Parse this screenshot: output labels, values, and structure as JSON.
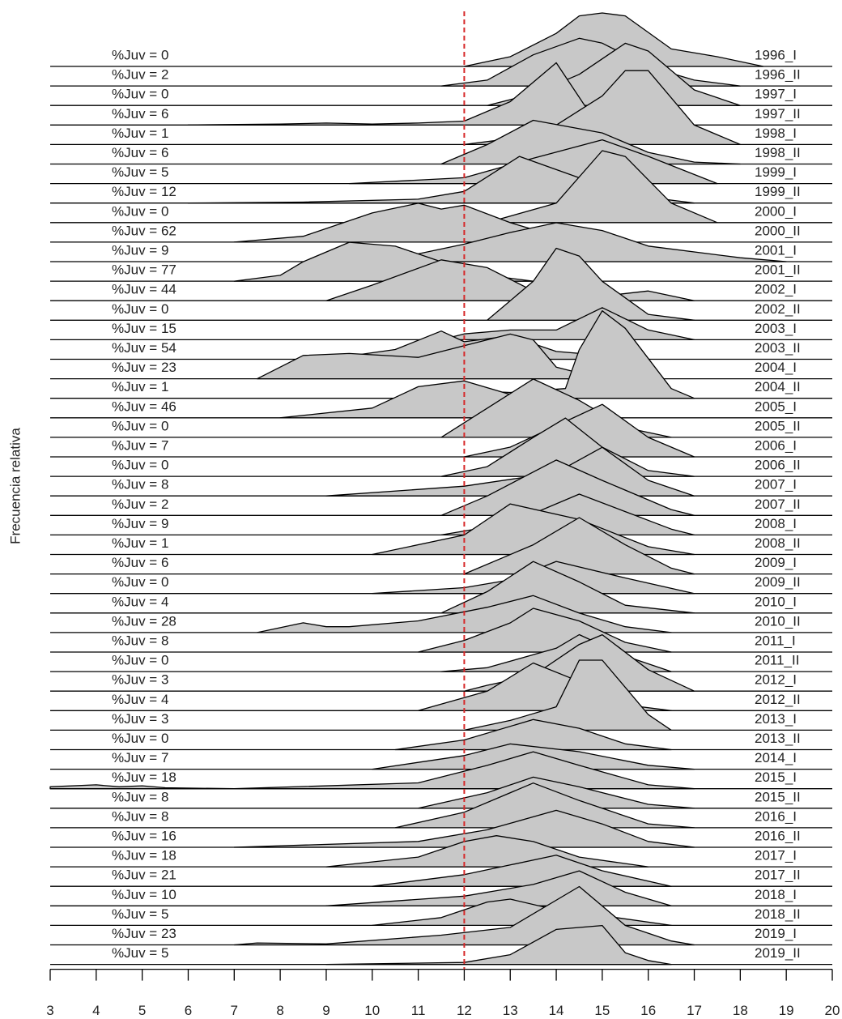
{
  "chart_data": {
    "type": "ridgeline",
    "ylabel": "Frecuencia relativa",
    "xlim": [
      3,
      20
    ],
    "xticks": [
      3,
      4,
      5,
      6,
      7,
      8,
      9,
      10,
      11,
      12,
      13,
      14,
      15,
      16,
      17,
      18,
      19,
      20
    ],
    "vline": 12,
    "vline_color": "#d62728",
    "fill": "#c8c8c8",
    "series": [
      {
        "name": "1996_I",
        "label": "%Juv = 0",
        "x": [
          12,
          13,
          14,
          14.5,
          15,
          15.5,
          16.5,
          17.5,
          18.5
        ],
        "values": [
          0,
          0.5,
          1.7,
          2.6,
          2.75,
          2.6,
          0.9,
          0.5,
          0
        ]
      },
      {
        "name": "1996_II",
        "label": "%Juv = 2",
        "x": [
          11.5,
          12.5,
          13.5,
          14.5,
          15,
          16,
          17,
          18
        ],
        "values": [
          0,
          0.3,
          1.6,
          2.45,
          2.2,
          1,
          0.3,
          0
        ]
      },
      {
        "name": "1997_I",
        "label": "%Juv = 0",
        "x": [
          12.5,
          13.5,
          14.5,
          15.5,
          16,
          17,
          18
        ],
        "values": [
          0,
          0.6,
          1.6,
          3.2,
          2.8,
          0.8,
          0
        ]
      },
      {
        "name": "1997_II",
        "label": "%Juv = 6",
        "x": [
          6,
          8,
          9,
          10,
          11,
          12,
          13,
          14,
          14.9
        ],
        "values": [
          0,
          0.05,
          0.1,
          0.05,
          0.1,
          0.2,
          1.2,
          3.2,
          0
        ]
      },
      {
        "name": "1998_I",
        "label": "%Juv = 1",
        "x": [
          12,
          13,
          14,
          15,
          15.5,
          16,
          17,
          18
        ],
        "values": [
          0,
          0.3,
          1,
          2.5,
          3.8,
          3.8,
          1,
          0
        ]
      },
      {
        "name": "1998_II",
        "label": "%Juv = 6",
        "x": [
          11.5,
          12.5,
          13.5,
          15,
          16,
          17,
          18
        ],
        "values": [
          0,
          1,
          2.25,
          1.6,
          0.6,
          0.1,
          0
        ]
      },
      {
        "name": "1999_I",
        "label": "%Juv = 5",
        "x": [
          9.5,
          12,
          13.5,
          15,
          16,
          17.5
        ],
        "values": [
          0,
          0.3,
          1.3,
          2.25,
          1.4,
          0
        ]
      },
      {
        "name": "1999_II",
        "label": "%Juv = 12",
        "x": [
          6,
          8.5,
          11,
          12,
          13.2,
          14.5,
          16,
          17
        ],
        "values": [
          0,
          0.05,
          0.2,
          0.6,
          2.4,
          1.3,
          0.3,
          0
        ]
      },
      {
        "name": "2000_I",
        "label": "%Juv = 0",
        "x": [
          12.5,
          14,
          15,
          15.5,
          16.5,
          17.5
        ],
        "values": [
          0,
          1,
          3.7,
          3.4,
          1,
          0
        ]
      },
      {
        "name": "2000_II",
        "label": "%Juv = 62",
        "x": [
          7,
          8.5,
          10,
          11,
          11.5,
          12,
          13,
          14,
          15
        ],
        "values": [
          0,
          0.3,
          1.5,
          2,
          1.7,
          1.9,
          1,
          0.3,
          0
        ]
      },
      {
        "name": "2001_I",
        "label": "%Juv = 9",
        "x": [
          9,
          11,
          12,
          13,
          14,
          15,
          16,
          18,
          19
        ],
        "values": [
          0,
          0.4,
          0.9,
          1.5,
          2,
          1.6,
          0.8,
          0.2,
          0
        ]
      },
      {
        "name": "2001_II",
        "label": "%Juv = 77",
        "x": [
          7,
          8,
          8.5,
          9.5,
          10.5,
          11.5,
          12.5,
          13.5
        ],
        "values": [
          0,
          0.3,
          1,
          2,
          1.8,
          1,
          0.3,
          0
        ]
      },
      {
        "name": "2002_I",
        "label": "%Juv = 44",
        "x": [
          9,
          10,
          11.5,
          12.5,
          13.5,
          14.5,
          16,
          17
        ],
        "values": [
          0,
          0.8,
          2.1,
          1.7,
          0.5,
          0.1,
          0.5,
          0
        ]
      },
      {
        "name": "2002_II",
        "label": "%Juv = 0",
        "x": [
          12.5,
          13.5,
          14,
          14.5,
          15,
          16,
          17
        ],
        "values": [
          0,
          2,
          3.7,
          3.3,
          2,
          0.3,
          0
        ]
      },
      {
        "name": "2003_I",
        "label": "%Juv = 15",
        "x": [
          11.5,
          12,
          13,
          14,
          15,
          16,
          17
        ],
        "values": [
          0,
          0.3,
          0.5,
          0.5,
          1.65,
          0.5,
          0
        ]
      },
      {
        "name": "2003_II",
        "label": "%Juv = 54",
        "x": [
          9,
          10.5,
          11.5,
          12,
          13,
          14,
          15,
          16
        ],
        "values": [
          0,
          0.5,
          1.45,
          0.9,
          1.2,
          0.4,
          0.2,
          0
        ]
      },
      {
        "name": "2004_I",
        "label": "%Juv = 23",
        "x": [
          7.5,
          8.5,
          9.5,
          11,
          12,
          13,
          13.5,
          14,
          15
        ],
        "values": [
          0,
          1.2,
          1.3,
          1.1,
          1.7,
          2.3,
          2,
          0.6,
          0
        ]
      },
      {
        "name": "2004_II",
        "label": "%Juv = 1",
        "x": [
          10.5,
          12,
          13,
          14.2,
          14.5,
          15,
          15.5,
          16.5,
          17
        ],
        "values": [
          0,
          0.4,
          0.3,
          0.5,
          2.5,
          4.5,
          3.6,
          0.5,
          0
        ]
      },
      {
        "name": "2005_I",
        "label": "%Juv = 46",
        "x": [
          8,
          10,
          11,
          12,
          13,
          14,
          15
        ],
        "values": [
          0,
          0.5,
          1.6,
          1.9,
          1.2,
          0.4,
          0
        ]
      },
      {
        "name": "2005_II",
        "label": "%Juv = 0",
        "x": [
          11.5,
          12.5,
          13.5,
          14.5,
          15.5,
          16.5
        ],
        "values": [
          0,
          1.5,
          3,
          1.9,
          0.5,
          0
        ]
      },
      {
        "name": "2006_I",
        "label": "%Juv = 7",
        "x": [
          12,
          13,
          14,
          15,
          16,
          17
        ],
        "values": [
          0,
          0.5,
          1.6,
          2.7,
          1,
          0
        ]
      },
      {
        "name": "2006_II",
        "label": "%Juv = 0",
        "x": [
          11.5,
          12.5,
          13.5,
          14.2,
          15,
          16,
          17
        ],
        "values": [
          0,
          0.5,
          2,
          3,
          1.5,
          0.3,
          0
        ]
      },
      {
        "name": "2007_I",
        "label": "%Juv = 8",
        "x": [
          9,
          12,
          14,
          15,
          16,
          17
        ],
        "values": [
          0,
          0.5,
          1.2,
          2.5,
          0.8,
          0
        ]
      },
      {
        "name": "2007_II",
        "label": "%Juv = 2",
        "x": [
          11.5,
          12.5,
          14,
          15,
          16.5,
          17
        ],
        "values": [
          0,
          1,
          2.85,
          1.8,
          0.3,
          0
        ]
      },
      {
        "name": "2008_I",
        "label": "%Juv = 9",
        "x": [
          11.5,
          13,
          14.5,
          15.5,
          16.5,
          17
        ],
        "values": [
          0,
          0.6,
          2.1,
          1.2,
          0.3,
          0
        ]
      },
      {
        "name": "2008_II",
        "label": "%Juv = 1",
        "x": [
          10,
          12,
          13,
          14.5,
          16,
          17
        ],
        "values": [
          0,
          1,
          2.6,
          1.8,
          0.4,
          0
        ]
      },
      {
        "name": "2009_I",
        "label": "%Juv = 6",
        "x": [
          12,
          13.5,
          14.5,
          15.5,
          16.5,
          17
        ],
        "values": [
          0,
          1.5,
          2.9,
          1.5,
          0.3,
          0
        ]
      },
      {
        "name": "2009_II",
        "label": "%Juv = 0",
        "x": [
          10,
          12,
          13,
          14,
          15.5,
          17
        ],
        "values": [
          0,
          0.3,
          0.7,
          1.65,
          0.8,
          0
        ]
      },
      {
        "name": "2010_I",
        "label": "%Juv = 4",
        "x": [
          11.5,
          12.5,
          13.5,
          14.5,
          15.5,
          17
        ],
        "values": [
          0,
          1.1,
          2.65,
          1.6,
          0.4,
          0
        ]
      },
      {
        "name": "2010_II",
        "label": "%Juv = 28",
        "x": [
          7.5,
          8.5,
          9,
          9.5,
          11,
          12.5,
          13.5,
          14.5,
          15.5,
          16.5
        ],
        "values": [
          0,
          0.5,
          0.3,
          0.3,
          0.6,
          1.3,
          1.9,
          1,
          0.3,
          0
        ]
      },
      {
        "name": "2011_I",
        "label": "%Juv = 8",
        "x": [
          11,
          12,
          13,
          13.5,
          14.5,
          15.5,
          16.5
        ],
        "values": [
          0,
          0.6,
          1.5,
          2.25,
          1.6,
          0.5,
          0
        ]
      },
      {
        "name": "2011_II",
        "label": "%Juv = 0",
        "x": [
          11.5,
          12.5,
          14,
          14.5,
          15.5,
          16.5
        ],
        "values": [
          0,
          0.2,
          1.2,
          1.9,
          0.8,
          0
        ]
      },
      {
        "name": "2012_I",
        "label": "%Juv = 3",
        "x": [
          12,
          12.5,
          13.5,
          14.5,
          15,
          16,
          17
        ],
        "values": [
          0,
          0.3,
          0.8,
          2.4,
          2.9,
          1.1,
          0
        ]
      },
      {
        "name": "2012_II",
        "label": "%Juv = 4",
        "x": [
          11,
          12.5,
          13.5,
          14.5,
          15.5,
          16.5
        ],
        "values": [
          0,
          1,
          2.45,
          1.5,
          0.3,
          0
        ]
      },
      {
        "name": "2013_I",
        "label": "%Juv = 3",
        "x": [
          12,
          13,
          14,
          14.5,
          15,
          16,
          16.5
        ],
        "values": [
          0,
          0.5,
          1.2,
          3.6,
          3.6,
          0.8,
          0
        ]
      },
      {
        "name": "2013_II",
        "label": "%Juv = 0",
        "x": [
          10.5,
          12,
          13.5,
          14.5,
          15.5,
          16.5
        ],
        "values": [
          0,
          0.5,
          1.55,
          1.1,
          0.3,
          0
        ]
      },
      {
        "name": "2014_I",
        "label": "%Juv = 7",
        "x": [
          10,
          12,
          13,
          14.5,
          16,
          17
        ],
        "values": [
          0,
          0.7,
          1.3,
          0.9,
          0.2,
          0
        ]
      },
      {
        "name": "2015_I",
        "label": "%Juv = 18",
        "x": [
          3,
          4,
          4.5,
          5,
          5.5,
          7,
          11,
          12.5,
          13.5,
          14.5,
          16,
          17
        ],
        "values": [
          0.1,
          0.2,
          0.1,
          0.15,
          0.05,
          0,
          0.3,
          1.2,
          1.9,
          1.2,
          0.2,
          0
        ]
      },
      {
        "name": "2015_II",
        "label": "%Juv = 8",
        "x": [
          11,
          12.5,
          13.5,
          14.5,
          16,
          17
        ],
        "values": [
          0,
          0.8,
          1.6,
          1.1,
          0.2,
          0
        ]
      },
      {
        "name": "2016_I",
        "label": "%Juv = 8",
        "x": [
          10.5,
          12,
          13.5,
          14.5,
          16,
          17
        ],
        "values": [
          0,
          0.8,
          2.3,
          1.4,
          0.2,
          0
        ]
      },
      {
        "name": "2016_II",
        "label": "%Juv = 16",
        "x": [
          7,
          11,
          12.5,
          14,
          15,
          16,
          17
        ],
        "values": [
          0,
          0.3,
          0.9,
          1.9,
          1.2,
          0.3,
          0
        ]
      },
      {
        "name": "2017_I",
        "label": "%Juv = 18",
        "x": [
          9,
          11,
          12,
          12.7,
          13.5,
          14.5,
          16
        ],
        "values": [
          0,
          0.5,
          1.3,
          1.6,
          1.3,
          0.5,
          0
        ]
      },
      {
        "name": "2017_II",
        "label": "%Juv = 21",
        "x": [
          10,
          12,
          13,
          14,
          15,
          16.5
        ],
        "values": [
          0,
          0.6,
          1.1,
          1.6,
          0.8,
          0
        ]
      },
      {
        "name": "2018_I",
        "label": "%Juv = 10",
        "x": [
          9,
          12,
          13.5,
          14.5,
          15.5,
          16.5
        ],
        "values": [
          0,
          0.5,
          1.1,
          1.8,
          0.7,
          0
        ]
      },
      {
        "name": "2018_II",
        "label": "%Juv = 5",
        "x": [
          10,
          11.5,
          12.5,
          13,
          14,
          15,
          16.5
        ],
        "values": [
          0,
          0.4,
          1.2,
          1.35,
          0.8,
          0.5,
          0
        ]
      },
      {
        "name": "2019_I",
        "label": "%Juv = 23",
        "x": [
          7,
          7.5,
          9,
          11.5,
          13,
          14.5,
          15.5,
          16.5,
          17
        ],
        "values": [
          0,
          0.1,
          0.05,
          0.5,
          0.9,
          3,
          1,
          0.2,
          0
        ]
      },
      {
        "name": "2019_II",
        "label": "%Juv = 5",
        "x": [
          9,
          12,
          13,
          14,
          15,
          15.5,
          16,
          16.5
        ],
        "values": [
          0,
          0.1,
          0.5,
          1.8,
          2,
          0.6,
          0.2,
          0
        ]
      }
    ]
  }
}
